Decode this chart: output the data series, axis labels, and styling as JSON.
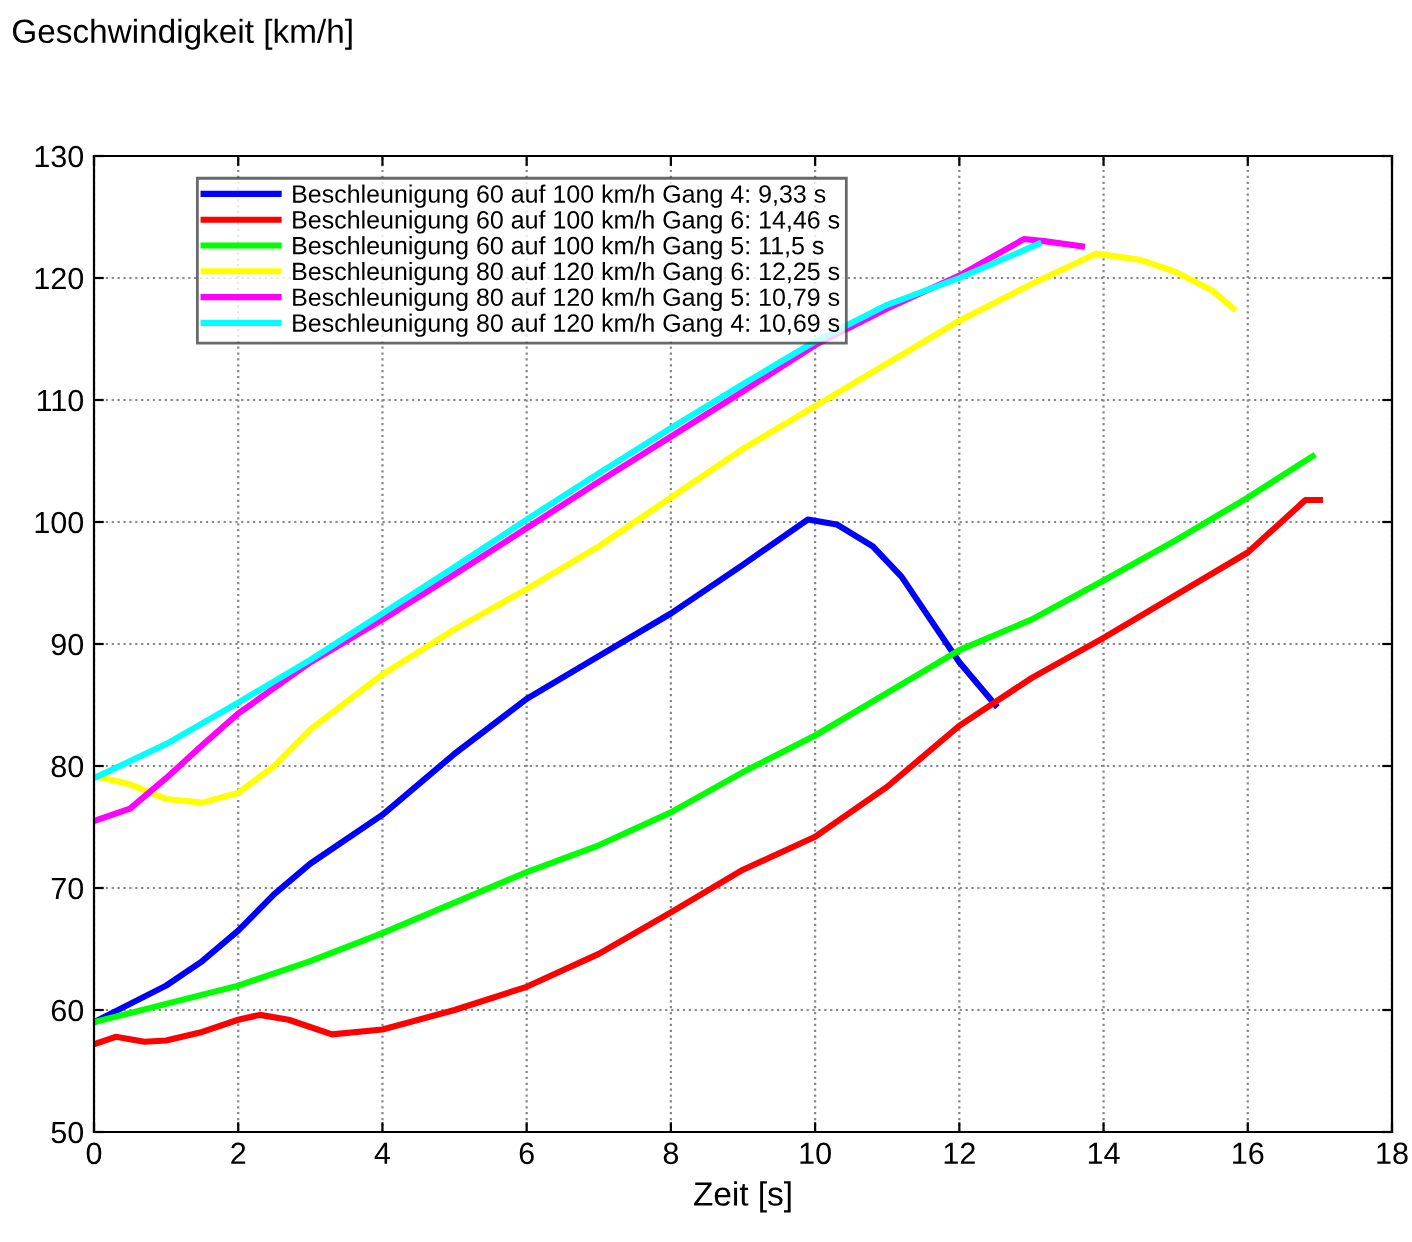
{
  "chart_data": {
    "type": "line",
    "ylabel": "Geschwindigkeit [km/h]",
    "xlabel": "Zeit [s]",
    "xlim": [
      0,
      18
    ],
    "ylim": [
      50,
      130
    ],
    "xticks": [
      0,
      2,
      4,
      6,
      8,
      10,
      12,
      14,
      16,
      18
    ],
    "yticks": [
      50,
      60,
      70,
      80,
      90,
      100,
      110,
      120,
      130
    ],
    "grid": true,
    "legend": "top left",
    "line_style": "solid",
    "marker": "none",
    "series": [
      {
        "name": "Beschleunigung 60 auf 100 km/h Gang 4: 9,33 s",
        "color": "#0000ff",
        "x": [
          0,
          0.5,
          1,
          1.5,
          2,
          2.5,
          3,
          4,
          5,
          6,
          7,
          8,
          9,
          9.9,
          10.3,
          10.8,
          11.2,
          11.6,
          12,
          12.5
        ],
        "values": [
          59,
          60.5,
          62,
          64,
          66.5,
          69.5,
          72,
          76,
          81,
          85.5,
          89,
          92.5,
          96.5,
          100.2,
          99.8,
          98,
          95.5,
          92,
          88.5,
          85
        ]
      },
      {
        "name": "Beschleunigung 60 auf 100 km/h Gang 6: 14,46 s",
        "color": "#ff0000",
        "x": [
          0,
          0.3,
          0.7,
          1,
          1.5,
          2,
          2.3,
          2.7,
          3.3,
          4,
          5,
          6,
          7,
          8,
          9,
          10,
          11,
          12,
          13,
          14,
          15,
          16,
          16.8,
          17
        ],
        "values": [
          57.2,
          57.8,
          57.4,
          57.5,
          58.2,
          59.2,
          59.6,
          59.2,
          58,
          58.4,
          60,
          61.9,
          64.6,
          68,
          71.5,
          74.2,
          78.3,
          83.3,
          87.2,
          90.5,
          94,
          97.5,
          101.8,
          101.8
        ]
      },
      {
        "name": "Beschleunigung 60 auf 100 km/h Gang 5: 11,5 s",
        "color": "#00ff00",
        "x": [
          0,
          1,
          2,
          3,
          4,
          5,
          6,
          7,
          8,
          9,
          10,
          11,
          12,
          13,
          14,
          15,
          16,
          16.9
        ],
        "values": [
          59,
          60.5,
          62,
          64,
          66.3,
          68.8,
          71.3,
          73.5,
          76.2,
          79.5,
          82.5,
          86,
          89.5,
          92,
          95.2,
          98.5,
          102,
          105.4
        ]
      },
      {
        "name": "Beschleunigung 80 auf 120 km/h Gang 6: 12,25 s",
        "color": "#ffff00",
        "x": [
          0,
          0.5,
          1,
          1.5,
          2,
          2.5,
          3,
          4,
          5,
          6,
          7,
          8,
          9,
          10,
          11,
          12,
          13,
          13.9,
          14.5,
          15,
          15.5,
          15.8
        ],
        "values": [
          79.2,
          78.5,
          77.3,
          77,
          77.8,
          80,
          83,
          87.5,
          91.2,
          94.5,
          98,
          102,
          106,
          109.5,
          113,
          116.5,
          119.5,
          122,
          121.5,
          120.5,
          119,
          117.5
        ]
      },
      {
        "name": "Beschleunigung 80 auf 120 km/h Gang 5: 10,79 s",
        "color": "#ff00ff",
        "x": [
          0,
          0.5,
          1,
          1.5,
          2,
          3,
          4,
          5,
          6,
          7,
          8,
          9,
          10,
          11,
          12,
          12.9,
          13.2,
          13.7
        ],
        "values": [
          75.5,
          76.5,
          79,
          81.7,
          84.3,
          88.5,
          92,
          95.7,
          99.5,
          103.3,
          107,
          110.7,
          114.5,
          117.5,
          120.2,
          123.2,
          123,
          122.6
        ]
      },
      {
        "name": "Beschleunigung 80 auf 120 km/h Gang 4: 10,69 s",
        "color": "#00ffff",
        "x": [
          0,
          1,
          2,
          3,
          4,
          5,
          6,
          7,
          8,
          9,
          10,
          11,
          12,
          13.1
        ],
        "values": [
          79,
          81.8,
          85.2,
          88.7,
          92.5,
          96.3,
          100.2,
          104,
          107.7,
          111.3,
          114.8,
          117.8,
          120,
          122.8
        ]
      }
    ]
  }
}
